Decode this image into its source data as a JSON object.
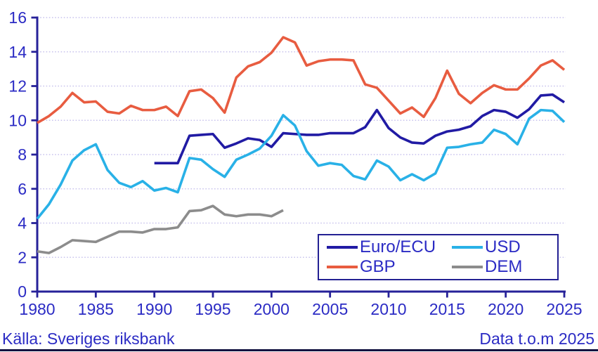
{
  "colors": {
    "axis": "#262199",
    "tick_text": "#2b2bc4",
    "grid": "#c9c4ed",
    "footer_text": "#2b2bc4",
    "bottom_rule": "#12123f",
    "legend_border": "#232093",
    "background": "#ffffff"
  },
  "chart_data": {
    "type": "line",
    "title": "",
    "xlabel": "",
    "ylabel": "",
    "xlim": [
      1980,
      2025
    ],
    "ylim": [
      0,
      16
    ],
    "x_ticks": [
      1980,
      1985,
      1990,
      1995,
      2000,
      2005,
      2010,
      2015,
      2020,
      2025
    ],
    "y_ticks": [
      0,
      2,
      4,
      6,
      8,
      10,
      12,
      14,
      16
    ],
    "grid": true,
    "legend_position": "inside-bottom-right",
    "series": [
      {
        "name": "Euro/ECU",
        "key": "euro-ecu",
        "color": "#211ba4",
        "start_year": 1990,
        "values": [
          7.5,
          7.5,
          7.5,
          9.1,
          9.15,
          9.2,
          8.4,
          8.65,
          8.95,
          8.85,
          8.45,
          9.25,
          9.2,
          9.15,
          9.15,
          9.25,
          9.25,
          9.25,
          9.6,
          10.6,
          9.55,
          9.0,
          8.7,
          8.65,
          9.1,
          9.35,
          9.45,
          9.65,
          10.25,
          10.6,
          10.5,
          10.15,
          10.65,
          11.45,
          11.5,
          11.05
        ]
      },
      {
        "name": "USD",
        "key": "usd",
        "color": "#29b1e7",
        "start_year": 1980,
        "values": [
          4.25,
          5.1,
          6.25,
          7.65,
          8.25,
          8.6,
          7.1,
          6.35,
          6.1,
          6.45,
          5.9,
          6.05,
          5.8,
          7.8,
          7.7,
          7.15,
          6.7,
          7.7,
          8.0,
          8.35,
          9.1,
          10.3,
          9.7,
          8.2,
          7.35,
          7.5,
          7.4,
          6.75,
          6.55,
          7.65,
          7.3,
          6.5,
          6.85,
          6.5,
          6.9,
          8.4,
          8.45,
          8.6,
          8.7,
          9.45,
          9.2,
          8.6,
          10.1,
          10.6,
          10.55,
          9.9
        ]
      },
      {
        "name": "GBP",
        "key": "gbp",
        "color": "#e85c40",
        "start_year": 1980,
        "values": [
          9.85,
          10.25,
          10.8,
          11.6,
          11.05,
          11.1,
          10.5,
          10.4,
          10.85,
          10.6,
          10.6,
          10.8,
          10.25,
          11.7,
          11.8,
          11.3,
          10.45,
          12.5,
          13.15,
          13.4,
          13.95,
          14.85,
          14.55,
          13.2,
          13.45,
          13.55,
          13.55,
          13.5,
          12.1,
          11.9,
          11.15,
          10.4,
          10.75,
          10.2,
          11.3,
          12.9,
          11.55,
          11.0,
          11.6,
          12.05,
          11.8,
          11.8,
          12.45,
          13.2,
          13.5,
          12.95
        ]
      },
      {
        "name": "DEM",
        "key": "dem",
        "color": "#8c8c8c",
        "start_year": 1980,
        "values": [
          2.35,
          2.25,
          2.6,
          3.0,
          2.95,
          2.9,
          3.2,
          3.5,
          3.5,
          3.45,
          3.65,
          3.65,
          3.75,
          4.7,
          4.75,
          5.0,
          4.5,
          4.4,
          4.5,
          4.5,
          4.4,
          4.75
        ]
      }
    ]
  },
  "footer": {
    "source": "Källa: Sveriges riksbank",
    "note": "Data t.o.m 2025"
  }
}
